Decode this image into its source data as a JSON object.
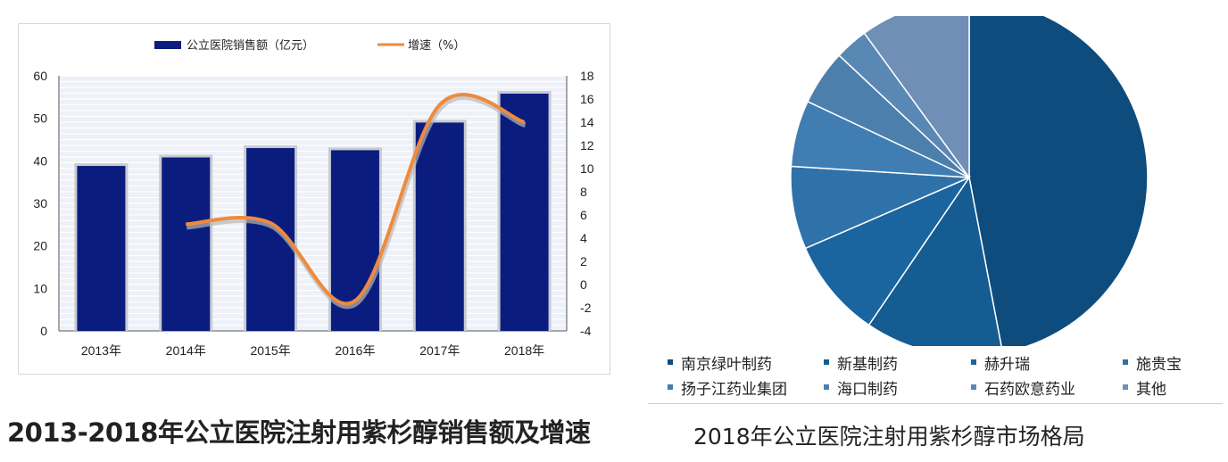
{
  "chart_data": [
    {
      "type": "bar",
      "title": "2013-2018年公立医院注射用紫杉醇销售额及增速",
      "categories": [
        "2013年",
        "2014年",
        "2015年",
        "2016年",
        "2017年",
        "2018年"
      ],
      "series": [
        {
          "name": "公立医院销售额（亿元）",
          "type": "bar",
          "axis": "left",
          "values": [
            38.8,
            40.8,
            43.0,
            42.5,
            49.0,
            55.8
          ]
        },
        {
          "name": "增速（%）",
          "type": "line",
          "axis": "right",
          "values": [
            null,
            5.2,
            5.3,
            -1.4,
            15.5,
            14.0
          ]
        }
      ],
      "ylim": [
        0,
        60
      ],
      "yticks": [
        "0",
        "10",
        "20",
        "30",
        "40",
        "50",
        "60"
      ],
      "y2lim": [
        -4,
        18
      ],
      "y2ticks": [
        "-4",
        "-2",
        "0",
        "2",
        "4",
        "6",
        "8",
        "10",
        "12",
        "14",
        "16",
        "18"
      ],
      "grid": true,
      "legend_position": "top",
      "colors": {
        "bar": "#0a1d7e",
        "line": "#ef8a3c"
      }
    },
    {
      "type": "pie",
      "title": "2018年公立医院注射用紫杉醇市场格局",
      "labels": [
        "南京绿叶制药",
        "新基制药",
        "赫升瑞",
        "施贵宝",
        "扬子江药业集团",
        "海口制药",
        "石药欧意药业",
        "其他"
      ],
      "values": [
        47.0,
        12.5,
        9.0,
        7.5,
        6.0,
        5.0,
        3.0,
        10.0
      ],
      "colors": [
        "#0e4c7e",
        "#145c92",
        "#1a65a0",
        "#2f72aa",
        "#3f7db3",
        "#4d7fac",
        "#5a88b5",
        "#6f8fb6"
      ],
      "legend_position": "bottom"
    }
  ]
}
